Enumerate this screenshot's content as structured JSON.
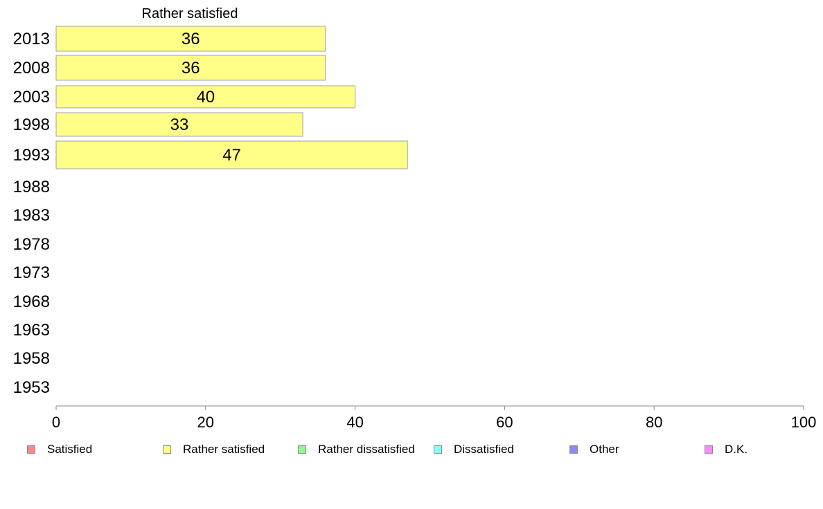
{
  "chart_data": {
    "type": "bar",
    "orientation": "horizontal",
    "series_title": "Rather satisfied",
    "categories": [
      "2013",
      "2008",
      "2003",
      "1998",
      "1993",
      "1988",
      "1983",
      "1978",
      "1973",
      "1968",
      "1963",
      "1958",
      "1953"
    ],
    "series": [
      {
        "name": "Rather satisfied",
        "values": [
          36,
          36,
          40,
          33,
          47,
          null,
          null,
          null,
          null,
          null,
          null,
          null,
          null
        ]
      }
    ],
    "xlim": [
      0,
      100
    ],
    "xticks": [
      0,
      20,
      40,
      60,
      80,
      100
    ],
    "grid": false,
    "legend_position": "bottom",
    "legend": [
      {
        "label": "Satisfied",
        "color": "#ff8888"
      },
      {
        "label": "Rather satisfied",
        "color": "#ffff88"
      },
      {
        "label": "Rather dissatisfied",
        "color": "#88ff88"
      },
      {
        "label": "Dissatisfied",
        "color": "#88ffff"
      },
      {
        "label": "Other",
        "color": "#8888ff"
      },
      {
        "label": "D.K.",
        "color": "#ff88ff"
      }
    ],
    "bar_color": "#ffff88"
  }
}
